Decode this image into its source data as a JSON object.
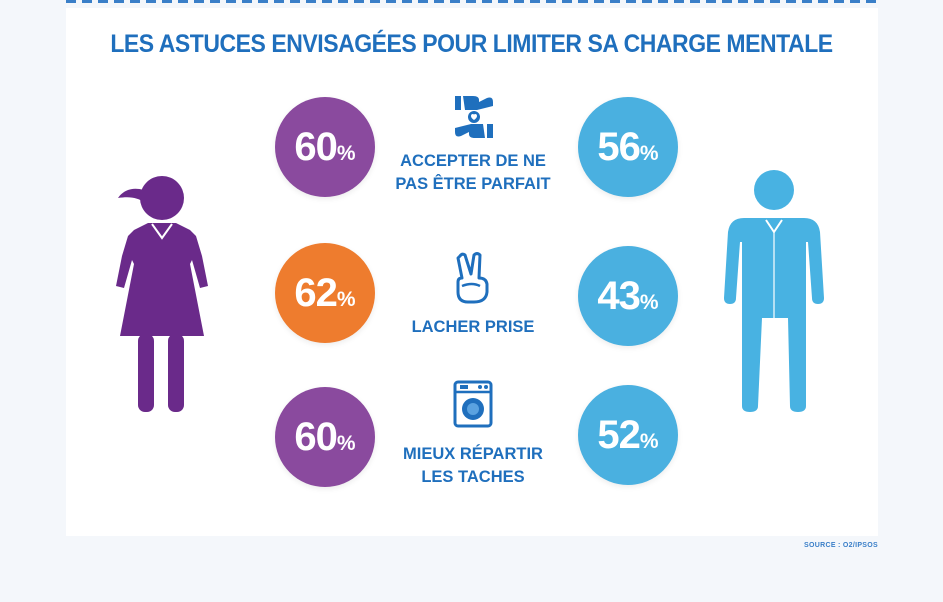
{
  "title": "LES ASTUCES ENVISAGÉES POUR LIMITER SA CHARGE MENTALE",
  "source": "SOURCE : O2/IPSOS",
  "colors": {
    "women_circle": "#8a4a9e",
    "women_highlight": "#ee7c2e",
    "men_circle": "#4ab0e0",
    "woman_figure": "#6a2a8a",
    "man_figure": "#48b2e2",
    "text_blue": "#1f6fbd"
  },
  "rows": [
    {
      "label": "ACCEPTER DE NE\nPAS ÊTRE PARFAIT",
      "women": "60",
      "men": "56",
      "unit": "%",
      "icon": "hands-heart-icon"
    },
    {
      "label": "LACHER PRISE",
      "women": "62",
      "men": "43",
      "unit": "%",
      "icon": "victory-hand-icon"
    },
    {
      "label": "MIEUX RÉPARTIR\nLES TACHES",
      "women": "60",
      "men": "52",
      "unit": "%",
      "icon": "washing-machine-icon"
    }
  ],
  "chart_data": {
    "type": "table",
    "title": "LES ASTUCES ENVISAGÉES POUR LIMITER SA CHARGE MENTALE",
    "categories": [
      "ACCEPTER DE NE PAS ÊTRE PARFAIT",
      "LACHER PRISE",
      "MIEUX RÉPARTIR LES TACHES"
    ],
    "series": [
      {
        "values": [
          60,
          62,
          60
        ]
      },
      {
        "values": [
          56,
          43,
          52
        ]
      }
    ],
    "unit": "%"
  }
}
